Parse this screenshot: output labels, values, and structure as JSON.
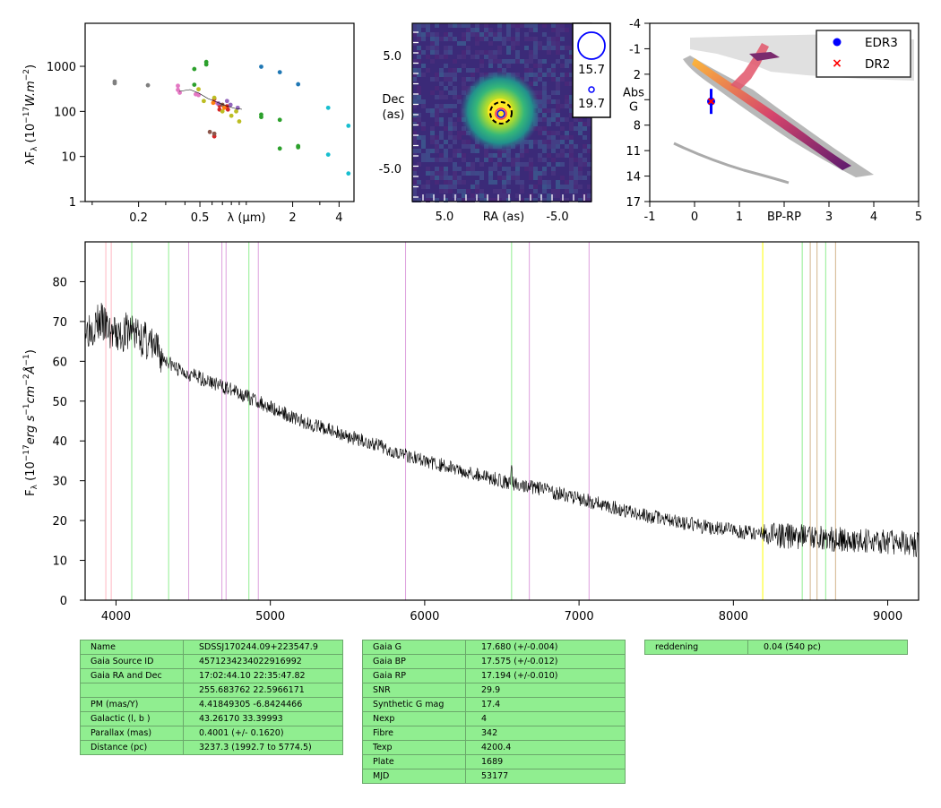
{
  "chart_data": [
    {
      "type": "scatter",
      "name": "sed",
      "ylabel": "λF_λ (10^-17 W.m^-2)",
      "xlabel": "λ (μm)",
      "log_x": true,
      "log_y": true,
      "xlim": [
        0.09,
        5.0
      ],
      "ylim": [
        1,
        9000
      ],
      "yticks": [
        "1",
        "10",
        "100",
        "1000"
      ],
      "xticks": [
        "0.2",
        "0.5",
        "2",
        "4"
      ],
      "series": [
        {
          "color": "#7f7f7f",
          "x": [
            0.14,
            0.14,
            0.23
          ],
          "y": [
            420,
            460,
            380
          ]
        },
        {
          "color": "#e377c2",
          "x": [
            0.36,
            0.36,
            0.37,
            0.47,
            0.49,
            0.62,
            0.65
          ],
          "y": [
            300,
            370,
            260,
            240,
            230,
            160,
            150
          ]
        },
        {
          "color": "#2ca02c",
          "x": [
            0.46,
            0.46,
            0.55,
            0.55,
            1.25,
            1.25,
            1.65,
            1.65,
            2.17,
            2.17
          ],
          "y": [
            870,
            390,
            1250,
            1100,
            85,
            75,
            65,
            15,
            17,
            16
          ]
        },
        {
          "color": "#d62728",
          "x": [
            0.62,
            0.67,
            0.67,
            0.75,
            0.76,
            0.62
          ],
          "y": [
            190,
            135,
            110,
            130,
            110,
            28
          ]
        },
        {
          "color": "#8c564b",
          "x": [
            0.58,
            0.62,
            0.7
          ],
          "y": [
            35,
            32,
            140
          ]
        },
        {
          "color": "#bcbd22",
          "x": [
            0.49,
            0.53,
            0.62,
            0.7,
            0.8,
            0.86,
            0.9
          ],
          "y": [
            310,
            170,
            200,
            100,
            80,
            100,
            60
          ]
        },
        {
          "color": "#9467bd",
          "x": [
            0.66,
            0.75,
            0.79,
            0.88
          ],
          "y": [
            150,
            170,
            140,
            120
          ]
        },
        {
          "color": "#ff7f0e",
          "x": [
            0.61,
            0.72
          ],
          "y": [
            155,
            120
          ]
        },
        {
          "color": "#1f77b4",
          "x": [
            1.25,
            1.65,
            2.17
          ],
          "y": [
            980,
            740,
            400
          ]
        },
        {
          "color": "#17becf",
          "x": [
            3.4,
            3.4,
            4.6,
            4.6
          ],
          "y": [
            120,
            11,
            48,
            4.2
          ]
        }
      ]
    },
    {
      "type": "heatmap",
      "name": "image",
      "xlabel": "RA (as)",
      "ylabel": "Dec (as)",
      "xticks": [
        "5.0",
        "-5.0"
      ],
      "yticks": [
        "5.0",
        "-5.0"
      ],
      "legend": [
        "15.7",
        "19.7"
      ]
    },
    {
      "type": "scatter",
      "name": "hrd",
      "xlabel": "BP-RP",
      "ylabel": "Abs G",
      "xlim": [
        -1,
        5
      ],
      "ylim": [
        17,
        -4
      ],
      "xticks": [
        "-1",
        "0",
        "1",
        "BP-RP",
        "3",
        "4",
        "5"
      ],
      "yticks": [
        "-4",
        "-1",
        "2",
        "Abs G",
        "8",
        "11",
        "14",
        "17"
      ],
      "series": [
        {
          "name": "EDR3",
          "color": "#0000ff",
          "x": [
            0.37
          ],
          "y": [
            5.2
          ]
        },
        {
          "name": "DR2",
          "color": "#ff0000",
          "x": [
            0.37
          ],
          "y": [
            5.2
          ]
        }
      ]
    },
    {
      "type": "line",
      "name": "spectrum",
      "ylabel": "F_λ (10^-17 erg s^-1 cm^-2 Å^-1)",
      "xlim": [
        3800,
        9200
      ],
      "ylim": [
        0,
        90
      ],
      "xticks": [
        "4000",
        "5000",
        "6000",
        "7000",
        "8000",
        "9000"
      ],
      "yticks": [
        "0",
        "10",
        "20",
        "30",
        "40",
        "50",
        "60",
        "70",
        "80"
      ],
      "x": [
        3800,
        3900,
        4000,
        4100,
        4200,
        4300,
        4400,
        4600,
        4800,
        5000,
        5200,
        5400,
        5600,
        5800,
        6000,
        6200,
        6400,
        6600,
        6800,
        7000,
        7200,
        7400,
        7600,
        7800,
        8000,
        8200,
        8400,
        8600,
        8800,
        9000,
        9200
      ],
      "y": [
        68,
        70,
        66,
        68,
        65,
        61,
        58,
        55,
        52,
        48.5,
        45,
        42.5,
        40,
        37.5,
        35,
        33,
        31,
        29,
        27.5,
        25.5,
        23.5,
        21.5,
        20,
        18.5,
        17.5,
        16.5,
        16,
        15.5,
        15,
        14.5,
        14
      ],
      "lines": [
        {
          "x": 3934,
          "color": "#ffb6c1"
        },
        {
          "x": 3969,
          "color": "#ffb6c1"
        },
        {
          "x": 4102,
          "color": "#90ee90"
        },
        {
          "x": 4341,
          "color": "#90ee90"
        },
        {
          "x": 4471,
          "color": "#dda0dd"
        },
        {
          "x": 4686,
          "color": "#dda0dd"
        },
        {
          "x": 4713,
          "color": "#dda0dd"
        },
        {
          "x": 4861,
          "color": "#90ee90"
        },
        {
          "x": 4922,
          "color": "#dda0dd"
        },
        {
          "x": 5876,
          "color": "#dda0dd"
        },
        {
          "x": 6563,
          "color": "#90ee90"
        },
        {
          "x": 6678,
          "color": "#dda0dd"
        },
        {
          "x": 7065,
          "color": "#dda0dd"
        },
        {
          "x": 8190,
          "color": "#ffff00"
        },
        {
          "x": 8446,
          "color": "#90ee90"
        },
        {
          "x": 8498,
          "color": "#d2b48c"
        },
        {
          "x": 8542,
          "color": "#d2b48c"
        },
        {
          "x": 8598,
          "color": "#90ee90"
        },
        {
          "x": 8662,
          "color": "#d2b48c"
        }
      ]
    }
  ],
  "table1": [
    {
      "k": "Name",
      "v": "SDSSJ170244.09+223547.9"
    },
    {
      "k": "Gaia Source ID",
      "v": "4571234234022916992"
    },
    {
      "k": "Gaia RA and Dec",
      "v": "17:02:44.10    22:35:47.82"
    },
    {
      "k": "",
      "v": "255.683762    22.5966171"
    },
    {
      "k": "PM (mas/Y)",
      "v": "4.41849305    -6.8424466"
    },
    {
      "k": "Galactic (l, b )",
      "v": "43.26170    33.39993"
    },
    {
      "k": "Parallax (mas)",
      "v": "0.4001 (+/- 0.1620)"
    },
    {
      "k": "Distance (pc)",
      "v": "3237.3 (1992.7 to 5774.5)"
    }
  ],
  "table2": [
    {
      "k": "Gaia G",
      "v": "17.680 (+/-0.004)"
    },
    {
      "k": "Gaia BP",
      "v": "17.575 (+/-0.012)"
    },
    {
      "k": "Gaia RP",
      "v": "17.194 (+/-0.010)"
    },
    {
      "k": "SNR",
      "v": "29.9"
    },
    {
      "k": "Synthetic G mag",
      "v": "17.4"
    },
    {
      "k": "Nexp",
      "v": "4"
    },
    {
      "k": "Fibre",
      "v": "342"
    },
    {
      "k": "Texp",
      "v": "4200.4"
    },
    {
      "k": "Plate",
      "v": "1689"
    },
    {
      "k": "MJD",
      "v": "53177"
    }
  ],
  "table3": [
    {
      "k": "reddening",
      "v": "0.04 (540 pc)"
    }
  ]
}
